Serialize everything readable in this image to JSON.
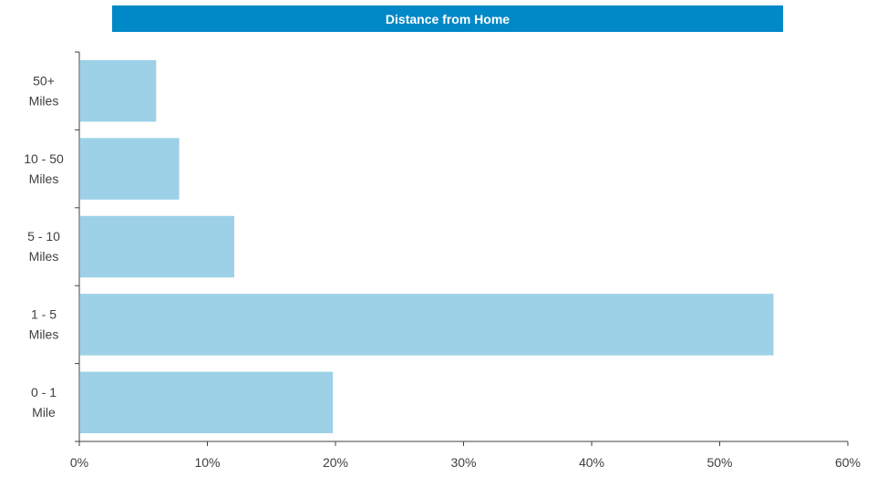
{
  "colors": {
    "title_banner": "#0088c7",
    "title_text": "#ffffff",
    "bar": "#9dd1e8",
    "axis": "#404040"
  },
  "chart_data": {
    "type": "bar",
    "orientation": "horizontal",
    "title": "Distance from Home",
    "xlabel": "",
    "ylabel": "",
    "categories": [
      [
        "0 - 1",
        "Mile"
      ],
      [
        "1 - 5",
        "Miles"
      ],
      [
        "5 - 10",
        "Miles"
      ],
      [
        "10 - 50",
        "Miles"
      ],
      [
        "50+",
        "Miles"
      ]
    ],
    "values": [
      19.8,
      54.2,
      12.1,
      7.8,
      6.0
    ],
    "xlim": [
      0,
      60
    ],
    "xticks": [
      0,
      10,
      20,
      30,
      40,
      50,
      60
    ],
    "xtick_labels": [
      "0%",
      "10%",
      "20%",
      "30%",
      "40%",
      "50%",
      "60%"
    ],
    "grid": false,
    "legend": "none"
  }
}
